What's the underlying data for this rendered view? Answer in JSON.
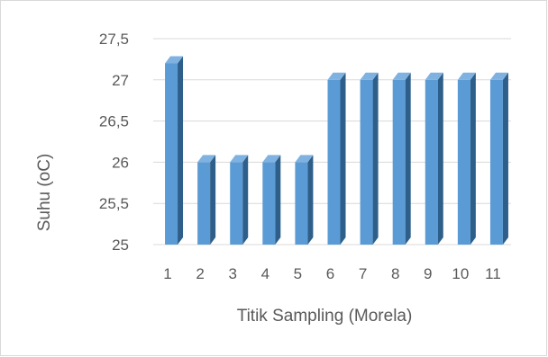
{
  "chart_data": {
    "type": "bar",
    "style": "3d-column",
    "categories": [
      "1",
      "2",
      "3",
      "4",
      "5",
      "6",
      "7",
      "8",
      "9",
      "10",
      "11"
    ],
    "values": [
      27.2,
      26,
      26,
      26,
      26,
      27,
      27,
      27,
      27,
      27,
      27
    ],
    "title": "",
    "xlabel": "Titik Sampling (Morela)",
    "ylabel": "Suhu (oC)",
    "ylim": [
      25,
      27.5
    ],
    "yticks": [
      "25",
      "25,5",
      "26",
      "26,5",
      "27",
      "27,5"
    ],
    "grid": true,
    "legend": "none",
    "colors": {
      "bar_front": "#5b9bd5",
      "bar_side": "#2e5f8a",
      "bar_top": "#7fb2e0",
      "grid": "#d9d9d9",
      "text": "#595959"
    }
  }
}
